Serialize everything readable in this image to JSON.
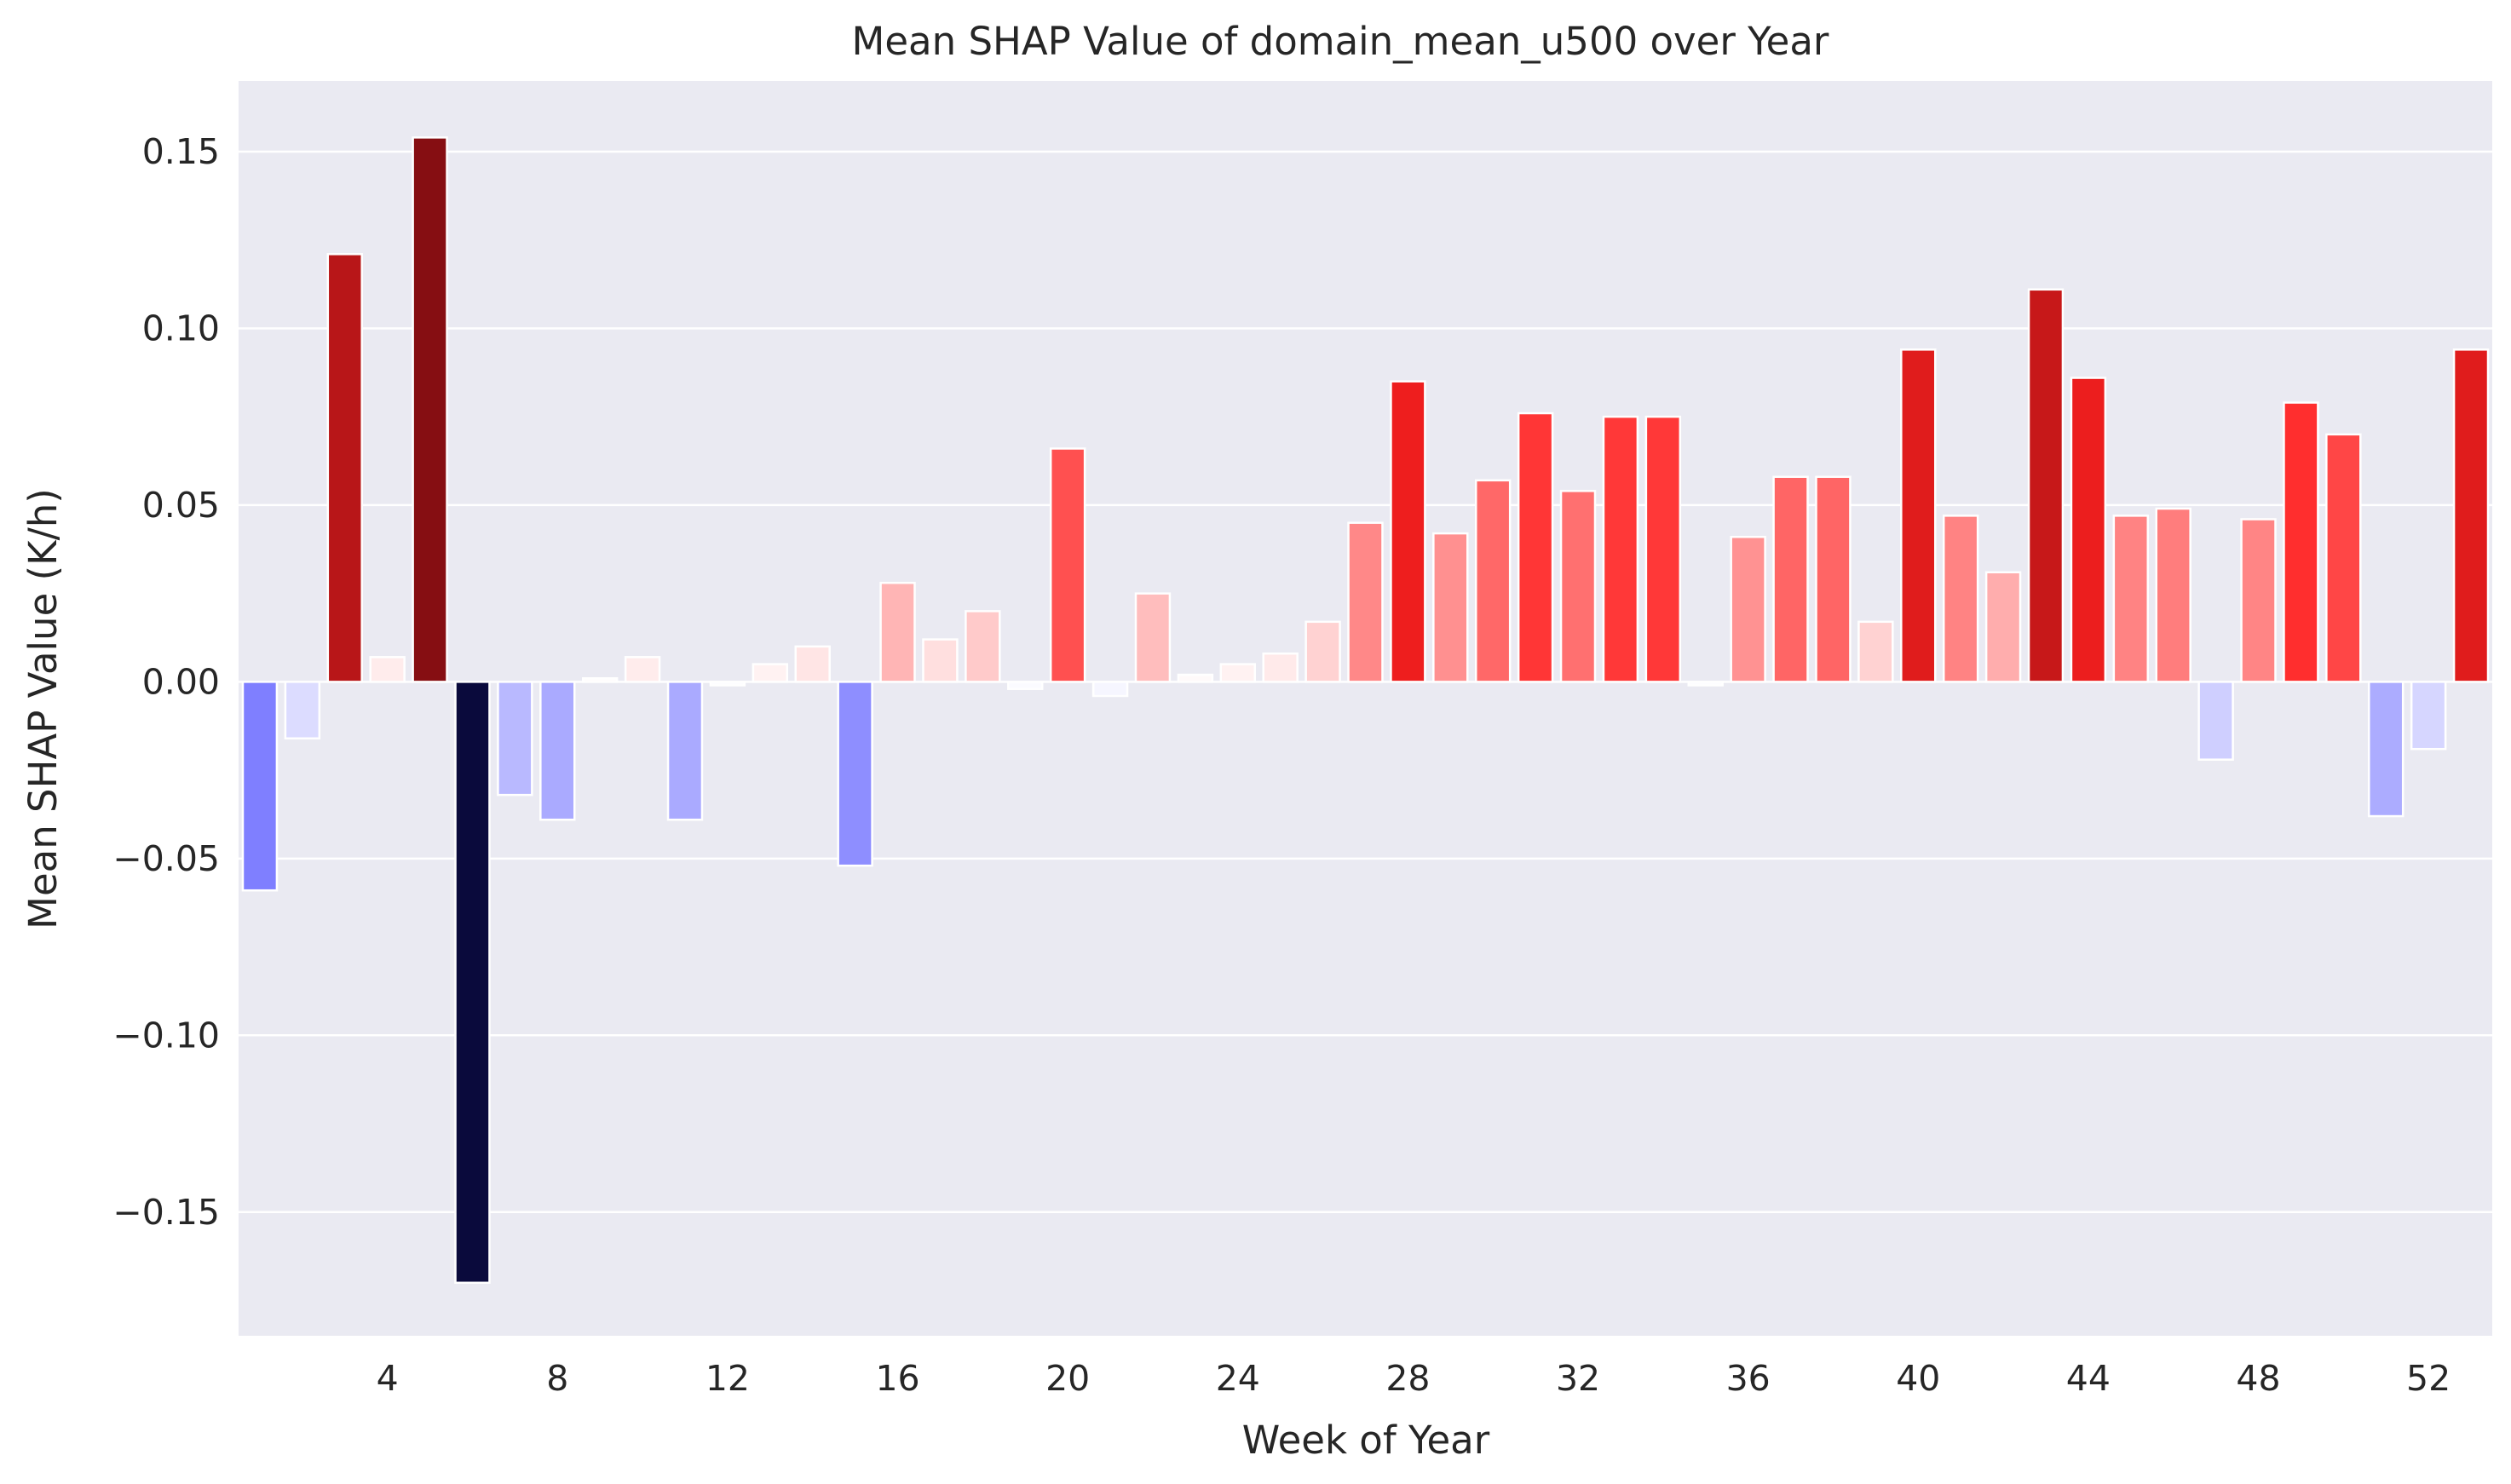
{
  "chart_data": {
    "type": "bar",
    "title": "Mean SHAP Value of domain_mean_u500 over Year",
    "xlabel": "Week of Year",
    "ylabel": "Mean SHAP Value (K/h)",
    "ylim": [
      -0.185,
      0.17
    ],
    "yticks": [
      0.15,
      0.1,
      0.05,
      0.0,
      -0.05,
      -0.1,
      -0.15
    ],
    "ytick_labels": [
      "0.15",
      "0.10",
      "0.05",
      "0.00",
      "−0.05",
      "−0.10",
      "−0.15"
    ],
    "xticks": [
      4,
      8,
      12,
      16,
      20,
      24,
      28,
      32,
      36,
      40,
      44,
      48,
      52
    ],
    "xtick_labels": [
      "4",
      "8",
      "12",
      "16",
      "20",
      "24",
      "28",
      "32",
      "36",
      "40",
      "44",
      "48",
      "52"
    ],
    "grid": true,
    "background": "#eaeaf2",
    "grid_color": "#ffffff",
    "colormap": "seismic (blue negative, red positive)",
    "weeks": [
      1,
      2,
      3,
      4,
      5,
      6,
      7,
      8,
      9,
      10,
      11,
      12,
      13,
      14,
      15,
      16,
      17,
      18,
      19,
      20,
      21,
      22,
      23,
      24,
      25,
      26,
      27,
      28,
      29,
      30,
      31,
      32,
      33,
      34,
      35,
      36,
      37,
      38,
      39,
      40,
      41,
      42,
      43,
      44,
      45,
      46,
      47,
      48,
      49,
      50,
      51,
      52,
      53
    ],
    "values": [
      -0.059,
      -0.016,
      0.121,
      0.007,
      0.154,
      -0.17,
      -0.032,
      -0.039,
      0.001,
      0.007,
      -0.039,
      -0.001,
      0.005,
      0.01,
      -0.052,
      0.028,
      0.012,
      0.02,
      -0.002,
      0.066,
      -0.004,
      0.025,
      0.002,
      0.005,
      0.008,
      0.017,
      0.045,
      0.085,
      0.042,
      0.057,
      0.076,
      0.054,
      0.075,
      0.075,
      -0.001,
      0.041,
      0.058,
      0.058,
      0.017,
      0.094,
      0.047,
      0.031,
      0.111,
      0.086,
      0.047,
      0.049,
      -0.022,
      0.046,
      0.079,
      0.07,
      -0.038,
      -0.019,
      0.094
    ]
  }
}
